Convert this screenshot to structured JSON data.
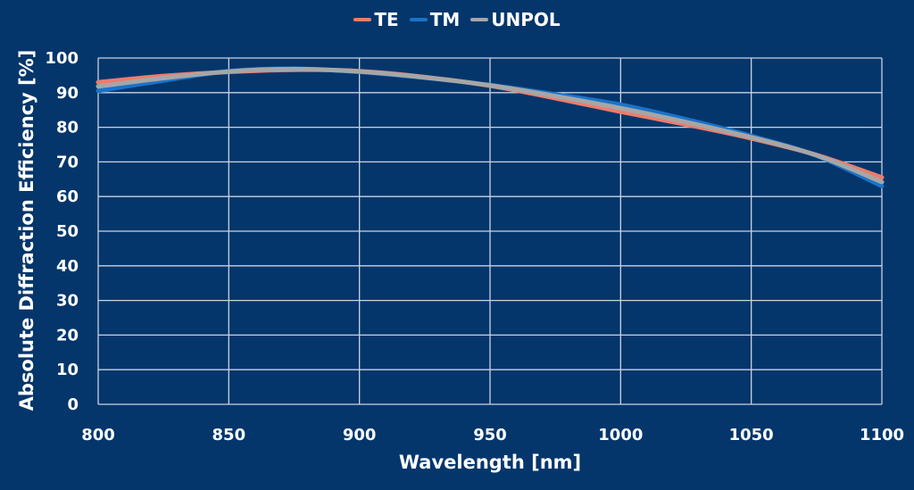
{
  "legend": {
    "items": [
      {
        "label": "TE",
        "color": "#ee7b6b"
      },
      {
        "label": "TM",
        "color": "#1a73c9"
      },
      {
        "label": "UNPOL",
        "color": "#a6a6a6"
      }
    ]
  },
  "axes": {
    "xlabel": "Wavelength [nm]",
    "ylabel": "Absolute Diffraction Efficiency [%]"
  },
  "colors": {
    "background": "#04366b",
    "grid": "#c9d3e0",
    "text": "#ffffff"
  },
  "chart_data": {
    "type": "line",
    "title": "",
    "xlabel": "Wavelength [nm]",
    "ylabel": "Absolute Diffraction Efficiency [%]",
    "xlim": [
      800,
      1100
    ],
    "ylim": [
      0,
      100
    ],
    "xticks": [
      800,
      850,
      900,
      950,
      1000,
      1050,
      1100
    ],
    "yticks": [
      0,
      10,
      20,
      30,
      40,
      50,
      60,
      70,
      80,
      90,
      100
    ],
    "grid": true,
    "legend_position": "top",
    "x": [
      800,
      825,
      850,
      875,
      900,
      925,
      950,
      975,
      1000,
      1025,
      1050,
      1075,
      1100
    ],
    "series": [
      {
        "name": "TE",
        "color": "#ee7b6b",
        "values": [
          93.0,
          94.8,
          96.0,
          96.6,
          96.2,
          94.5,
          92.0,
          88.4,
          84.5,
          80.8,
          76.8,
          72.0,
          65.5
        ]
      },
      {
        "name": "TM",
        "color": "#1a73c9",
        "values": [
          90.5,
          93.5,
          96.2,
          96.9,
          96.0,
          94.3,
          92.2,
          89.5,
          86.5,
          82.3,
          77.5,
          71.8,
          63.0
        ]
      },
      {
        "name": "UNPOL",
        "color": "#a6a6a6",
        "values": [
          91.8,
          94.2,
          96.1,
          96.8,
          96.1,
          94.4,
          92.1,
          89.0,
          85.5,
          81.5,
          77.1,
          71.9,
          64.2
        ]
      }
    ]
  }
}
